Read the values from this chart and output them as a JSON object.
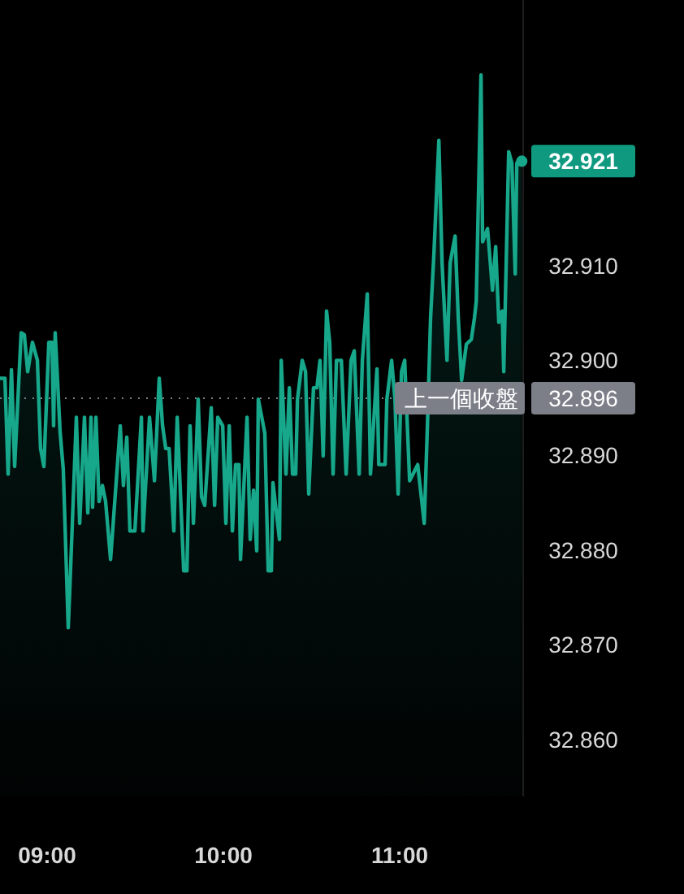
{
  "chart_data": {
    "type": "area",
    "xlim": [
      8.733,
      11.7
    ],
    "ylim": [
      32.854,
      32.938
    ],
    "xticks": [
      {
        "value": 9,
        "label": "09:00"
      },
      {
        "value": 10,
        "label": "10:00"
      },
      {
        "value": 11,
        "label": "11:00"
      }
    ],
    "yticks": [
      {
        "value": 32.86,
        "label": "32.860"
      },
      {
        "value": 32.87,
        "label": "32.870"
      },
      {
        "value": 32.88,
        "label": "32.880"
      },
      {
        "value": 32.89,
        "label": "32.890"
      },
      {
        "value": 32.9,
        "label": "32.900"
      },
      {
        "value": 32.91,
        "label": "32.910"
      }
    ],
    "grid": false,
    "line_style": "solid",
    "x": [
      8.733,
      8.761,
      8.779,
      8.798,
      8.816,
      8.853,
      8.871,
      8.89,
      8.917,
      8.945,
      8.963,
      8.982,
      9.01,
      9.028,
      9.037,
      9.046,
      9.074,
      9.092,
      9.12,
      9.129,
      9.166,
      9.185,
      9.212,
      9.231,
      9.249,
      9.258,
      9.277,
      9.295,
      9.314,
      9.332,
      9.36,
      9.415,
      9.433,
      9.452,
      9.47,
      9.498,
      9.535,
      9.544,
      9.581,
      9.609,
      9.636,
      9.655,
      9.673,
      9.692,
      9.719,
      9.738,
      9.775,
      9.793,
      9.811,
      9.83,
      9.857,
      9.876,
      9.894,
      9.931,
      9.95,
      9.968,
      9.996,
      10.014,
      10.033,
      10.051,
      10.069,
      10.088,
      10.097,
      10.134,
      10.152,
      10.171,
      10.189,
      10.198,
      10.235,
      10.254,
      10.272,
      10.281,
      10.318,
      10.328,
      10.355,
      10.374,
      10.392,
      10.41,
      10.42,
      10.447,
      10.466,
      10.484,
      10.511,
      10.53,
      10.548,
      10.566,
      10.585,
      10.603,
      10.622,
      10.641,
      10.669,
      10.696,
      10.724,
      10.742,
      10.77,
      10.788,
      10.816,
      10.834,
      10.871,
      10.881,
      10.917,
      10.927,
      10.954,
      10.973,
      10.991,
      11.01,
      11.028,
      11.056,
      11.102,
      11.139,
      11.157,
      11.175,
      11.194,
      11.222,
      11.24,
      11.268,
      11.286,
      11.314,
      11.332,
      11.351,
      11.378,
      11.406,
      11.424,
      11.434,
      11.461,
      11.47,
      11.498,
      11.526,
      11.544,
      11.562,
      11.581,
      11.59,
      11.618,
      11.636,
      11.655,
      11.664,
      11.692
    ],
    "series": [
      {
        "color": "#17a88c",
        "values": [
          32.8981,
          32.8981,
          32.888,
          32.899,
          32.8888,
          32.9029,
          32.9027,
          32.8988,
          32.9019,
          32.9,
          32.8907,
          32.8888,
          32.9019,
          32.9019,
          32.8931,
          32.9029,
          32.8924,
          32.8885,
          32.8718,
          32.8759,
          32.894,
          32.8828,
          32.894,
          32.8839,
          32.894,
          32.8845,
          32.894,
          32.8851,
          32.8868,
          32.8851,
          32.879,
          32.8931,
          32.8868,
          32.8919,
          32.882,
          32.882,
          32.894,
          32.882,
          32.894,
          32.8873,
          32.8981,
          32.8931,
          32.8907,
          32.8907,
          32.882,
          32.894,
          32.8778,
          32.8778,
          32.8931,
          32.8828,
          32.8959,
          32.8856,
          32.8847,
          32.895,
          32.8847,
          32.894,
          32.8931,
          32.8828,
          32.8931,
          32.882,
          32.889,
          32.889,
          32.879,
          32.894,
          32.8811,
          32.8863,
          32.8799,
          32.8959,
          32.8923,
          32.8778,
          32.8778,
          32.8871,
          32.8811,
          32.9,
          32.888,
          32.8971,
          32.888,
          32.888,
          32.8959,
          32.9,
          32.8988,
          32.8859,
          32.8971,
          32.8971,
          32.9,
          32.8899,
          32.9052,
          32.9019,
          32.888,
          32.9,
          32.9,
          32.888,
          32.9,
          32.901,
          32.888,
          32.9,
          32.907,
          32.888,
          32.8991,
          32.889,
          32.889,
          32.8959,
          32.9,
          32.8959,
          32.8859,
          32.8988,
          32.9,
          32.8873,
          32.889,
          32.8828,
          32.8931,
          32.9045,
          32.9113,
          32.9232,
          32.9103,
          32.9,
          32.9103,
          32.9131,
          32.9045,
          32.8979,
          32.9017,
          32.9022,
          32.9045,
          32.9062,
          32.9301,
          32.9125,
          32.9139,
          32.9074,
          32.912,
          32.904,
          32.9052,
          32.8988,
          32.922,
          32.9208,
          32.9091,
          32.9208,
          32.921
        ]
      }
    ],
    "ref_lines": [
      {
        "axis": "y",
        "value": 32.896,
        "label": "上一個收盤",
        "line_style": "dotted",
        "color": "#7c7e88"
      }
    ],
    "annotations": [
      {
        "text": "32.921",
        "x": 11.692,
        "y": 32.921
      },
      "32.896"
    ]
  }
}
